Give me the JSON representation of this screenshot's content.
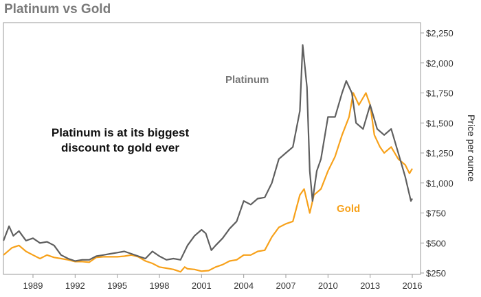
{
  "chart_data": {
    "type": "line",
    "title": "Platinum vs Gold",
    "xlabel": "",
    "ylabel": "Price per ounce",
    "xlim": [
      1986.9,
      2016.6
    ],
    "ylim": [
      250,
      2250
    ],
    "x_ticks": [
      "1989",
      "1992",
      "1995",
      "1998",
      "2001",
      "2004",
      "2007",
      "2010",
      "2013",
      "2016"
    ],
    "y_ticks": [
      "$250",
      "$500",
      "$750",
      "$1,000",
      "$1,250",
      "$1,500",
      "$1,750",
      "$2,000",
      "$2,250"
    ],
    "y_tick_values": [
      250,
      500,
      750,
      1000,
      1250,
      1500,
      1750,
      2000,
      2250
    ],
    "grid": false,
    "annotation": [
      "Platinum is at its biggest",
      "discount to gold ever"
    ],
    "series": [
      {
        "name": "Platinum",
        "color": "#5f5f5f",
        "x": [
          1986.9,
          1987.3,
          1987.6,
          1988,
          1988.5,
          1989,
          1989.5,
          1990,
          1990.5,
          1991,
          1991.5,
          1992,
          1992.5,
          1993,
          1993.5,
          1994,
          1994.5,
          1995,
          1995.5,
          1996,
          1996.5,
          1997,
          1997.5,
          1998,
          1998.5,
          1999,
          1999.5,
          2000,
          2000.5,
          2001,
          2001.3,
          2001.7,
          2002,
          2002.5,
          2003,
          2003.5,
          2004,
          2004.5,
          2005,
          2005.5,
          2006,
          2006.5,
          2007,
          2007.5,
          2008.0,
          2008.2,
          2008.5,
          2008.7,
          2008.9,
          2009.2,
          2009.5,
          2010,
          2010.5,
          2011,
          2011.3,
          2011.7,
          2012,
          2012.5,
          2013,
          2013.5,
          2014,
          2014.5,
          2015,
          2015.5,
          2015.9,
          2016.0
        ],
        "values": [
          520,
          640,
          560,
          600,
          520,
          540,
          500,
          510,
          480,
          400,
          370,
          350,
          360,
          360,
          390,
          400,
          410,
          420,
          430,
          410,
          390,
          370,
          430,
          390,
          360,
          370,
          360,
          480,
          560,
          610,
          580,
          440,
          480,
          540,
          620,
          680,
          850,
          820,
          870,
          880,
          1000,
          1200,
          1250,
          1300,
          1600,
          2150,
          1800,
          1100,
          850,
          1100,
          1200,
          1550,
          1550,
          1750,
          1850,
          1750,
          1500,
          1450,
          1650,
          1450,
          1400,
          1450,
          1250,
          1050,
          850,
          870
        ]
      },
      {
        "name": "Gold",
        "color": "#f7a11a",
        "x": [
          1986.9,
          1987.5,
          1988,
          1988.5,
          1989,
          1989.5,
          1990,
          1990.5,
          1991,
          1991.5,
          1992,
          1992.5,
          1993,
          1993.5,
          1994,
          1994.5,
          1995,
          1995.5,
          1996,
          1996.5,
          1997,
          1997.5,
          1998,
          1998.5,
          1999,
          1999.5,
          1999.8,
          2000,
          2000.5,
          2001,
          2001.5,
          2002,
          2002.5,
          2003,
          2003.5,
          2004,
          2004.5,
          2005,
          2005.5,
          2006,
          2006.5,
          2007,
          2007.5,
          2008,
          2008.3,
          2008.7,
          2009,
          2009.5,
          2010,
          2010.5,
          2011,
          2011.5,
          2011.8,
          2012.2,
          2012.7,
          2013,
          2013.3,
          2013.7,
          2014,
          2014.5,
          2015,
          2015.5,
          2015.8,
          2016
        ],
        "values": [
          400,
          460,
          480,
          430,
          400,
          370,
          400,
          380,
          370,
          360,
          345,
          345,
          340,
          380,
          385,
          385,
          385,
          390,
          400,
          385,
          350,
          330,
          300,
          290,
          280,
          260,
          300,
          285,
          280,
          265,
          270,
          300,
          320,
          350,
          360,
          400,
          400,
          430,
          440,
          550,
          630,
          660,
          680,
          900,
          950,
          750,
          900,
          950,
          1100,
          1220,
          1400,
          1550,
          1750,
          1650,
          1750,
          1650,
          1400,
          1300,
          1250,
          1300,
          1200,
          1150,
          1080,
          1120
        ]
      }
    ]
  }
}
